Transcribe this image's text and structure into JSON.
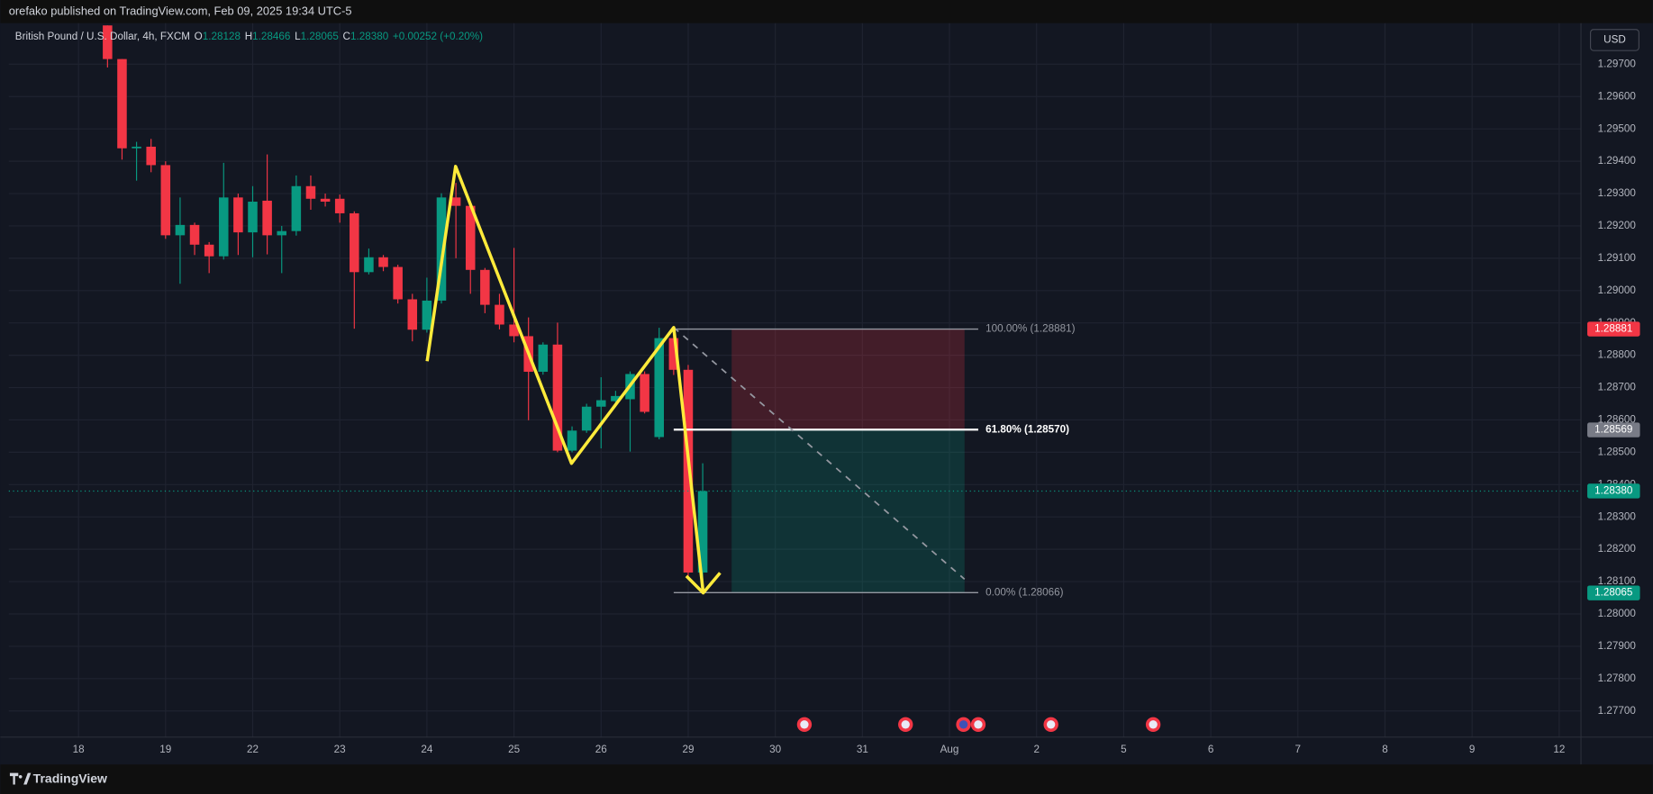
{
  "header": {
    "publisher": "orefako published on TradingView.com, Feb 09, 2025 19:34 UTC-5",
    "currency": "USD",
    "footer": "TradingView"
  },
  "chart_data": {
    "type": "candlestick",
    "title": "British Pound / U.S. Dollar, 4h, FXCM",
    "ohlc_legend": [
      {
        "key": "O",
        "value": "1.28128"
      },
      {
        "key": "H",
        "value": "1.28466"
      },
      {
        "key": "L",
        "value": "1.28065"
      },
      {
        "key": "C",
        "value": "1.28380"
      }
    ],
    "change": "+0.00252 (+0.20%)",
    "up_color": "#089981",
    "down_color": "#f23645",
    "grid": true,
    "x": [
      2,
      3,
      4,
      5,
      6,
      7,
      8,
      9,
      10,
      11,
      12,
      13,
      14,
      15,
      16,
      17,
      18,
      19,
      20,
      21,
      22,
      23,
      24,
      25,
      26,
      27,
      28,
      29,
      30,
      31,
      32,
      33,
      34,
      35,
      36,
      37,
      38,
      39,
      40,
      41,
      42,
      43
    ],
    "open": [
      1.2982,
      1.29716,
      1.2944,
      1.29445,
      1.29388,
      1.29171,
      1.29203,
      1.29142,
      1.29106,
      1.29288,
      1.2918,
      1.29278,
      1.29171,
      1.29184,
      1.29323,
      1.29284,
      1.29284,
      1.29239,
      1.29057,
      1.29103,
      1.29073,
      1.28973,
      1.28879,
      1.28969,
      1.29288,
      1.29262,
      1.29064,
      1.28956,
      1.28895,
      1.28859,
      1.28749,
      1.28833,
      1.28505,
      1.28567,
      1.28641,
      1.28658,
      1.28664,
      1.28742,
      1.28547,
      1.28853,
      1.28755,
      1.28128
    ],
    "high": [
      1.2982,
      1.29716,
      1.2946,
      1.29469,
      1.294,
      1.29288,
      1.2921,
      1.2915,
      1.29395,
      1.293,
      1.29323,
      1.29421,
      1.292,
      1.29356,
      1.29356,
      1.293,
      1.29297,
      1.29245,
      1.2913,
      1.2911,
      1.2908,
      1.2899,
      1.2904,
      1.29301,
      1.29333,
      1.2927,
      1.2907,
      1.2899,
      1.29132,
      1.28917,
      1.2884,
      1.28901,
      1.2858,
      1.2865,
      1.28732,
      1.2869,
      1.2875,
      1.2875,
      1.28885,
      1.28881,
      1.2877,
      1.28466
    ],
    "low": [
      1.2969,
      1.29405,
      1.2934,
      1.29366,
      1.2916,
      1.29021,
      1.2911,
      1.29054,
      1.29096,
      1.2911,
      1.29103,
      1.29112,
      1.29054,
      1.2917,
      1.2925,
      1.2926,
      1.2921,
      1.28882,
      1.2905,
      1.2906,
      1.2896,
      1.28843,
      1.2887,
      1.2896,
      1.291,
      1.2899,
      1.2893,
      1.2888,
      1.2884,
      1.28599,
      1.2874,
      1.285,
      1.285,
      1.2856,
      1.28512,
      1.2864,
      1.28502,
      1.2862,
      1.2854,
      1.28739,
      1.2811,
      1.28065
    ],
    "close": [
      1.29716,
      1.2944,
      1.29445,
      1.29388,
      1.29171,
      1.29203,
      1.29142,
      1.29106,
      1.29288,
      1.2918,
      1.29275,
      1.29171,
      1.29184,
      1.29323,
      1.29284,
      1.29275,
      1.29239,
      1.29057,
      1.29103,
      1.29073,
      1.28973,
      1.28879,
      1.28969,
      1.29288,
      1.29262,
      1.29064,
      1.28956,
      1.28895,
      1.28859,
      1.28749,
      1.28833,
      1.28505,
      1.28567,
      1.28641,
      1.28661,
      1.28674,
      1.28742,
      1.28625,
      1.28853,
      1.28755,
      1.28128,
      1.2838
    ],
    "xlim": [
      -4.8,
      103.5
    ],
    "xticks": [
      {
        "value": 0,
        "label": "18"
      },
      {
        "value": 6,
        "label": "19"
      },
      {
        "value": 12,
        "label": "22"
      },
      {
        "value": 18,
        "label": "23"
      },
      {
        "value": 24,
        "label": "24"
      },
      {
        "value": 30,
        "label": "25"
      },
      {
        "value": 36,
        "label": "26"
      },
      {
        "value": 42,
        "label": "29"
      },
      {
        "value": 48,
        "label": "30"
      },
      {
        "value": 54,
        "label": "31"
      },
      {
        "value": 60,
        "label": "Aug"
      },
      {
        "value": 66,
        "label": "2"
      },
      {
        "value": 72,
        "label": "5"
      },
      {
        "value": 78,
        "label": "6"
      },
      {
        "value": 84,
        "label": "7"
      },
      {
        "value": 90,
        "label": "8"
      },
      {
        "value": 96,
        "label": "9"
      },
      {
        "value": 102,
        "label": "12"
      }
    ],
    "ylim": [
      1.27619,
      1.29827
    ],
    "yticks": [
      {
        "value": 1.277,
        "label": "1.27700"
      },
      {
        "value": 1.278,
        "label": "1.27800"
      },
      {
        "value": 1.279,
        "label": "1.27900"
      },
      {
        "value": 1.28,
        "label": "1.28000"
      },
      {
        "value": 1.281,
        "label": "1.28100"
      },
      {
        "value": 1.282,
        "label": "1.28200"
      },
      {
        "value": 1.283,
        "label": "1.28300"
      },
      {
        "value": 1.284,
        "label": "1.28400"
      },
      {
        "value": 1.285,
        "label": "1.28500"
      },
      {
        "value": 1.286,
        "label": "1.28600"
      },
      {
        "value": 1.287,
        "label": "1.28700"
      },
      {
        "value": 1.288,
        "label": "1.28800"
      },
      {
        "value": 1.289,
        "label": "1.28900"
      },
      {
        "value": 1.29,
        "label": "1.29000"
      },
      {
        "value": 1.291,
        "label": "1.29100"
      },
      {
        "value": 1.292,
        "label": "1.29200"
      },
      {
        "value": 1.293,
        "label": "1.29300"
      },
      {
        "value": 1.294,
        "label": "1.29400"
      },
      {
        "value": 1.295,
        "label": "1.29500"
      },
      {
        "value": 1.296,
        "label": "1.29600"
      },
      {
        "value": 1.297,
        "label": "1.29700"
      }
    ],
    "fib_levels": [
      {
        "value": 1.28881,
        "label": "100.00% (1.28881)",
        "color": "#9598a1"
      },
      {
        "value": 1.2857,
        "label": "61.80% (1.28570)",
        "color": "#ffffff"
      },
      {
        "value": 1.28066,
        "label": "0.00% (1.28066)",
        "color": "#9598a1"
      }
    ],
    "price_tags": [
      {
        "value": 1.28881,
        "label": "1.28881",
        "color": "#f23645"
      },
      {
        "value": 1.28569,
        "label": "1.28569",
        "color": "#787b86"
      },
      {
        "value": 1.2838,
        "label": "1.28380",
        "color": "#089981"
      },
      {
        "value": 1.28065,
        "label": "1.28065",
        "color": "#089981"
      }
    ]
  }
}
